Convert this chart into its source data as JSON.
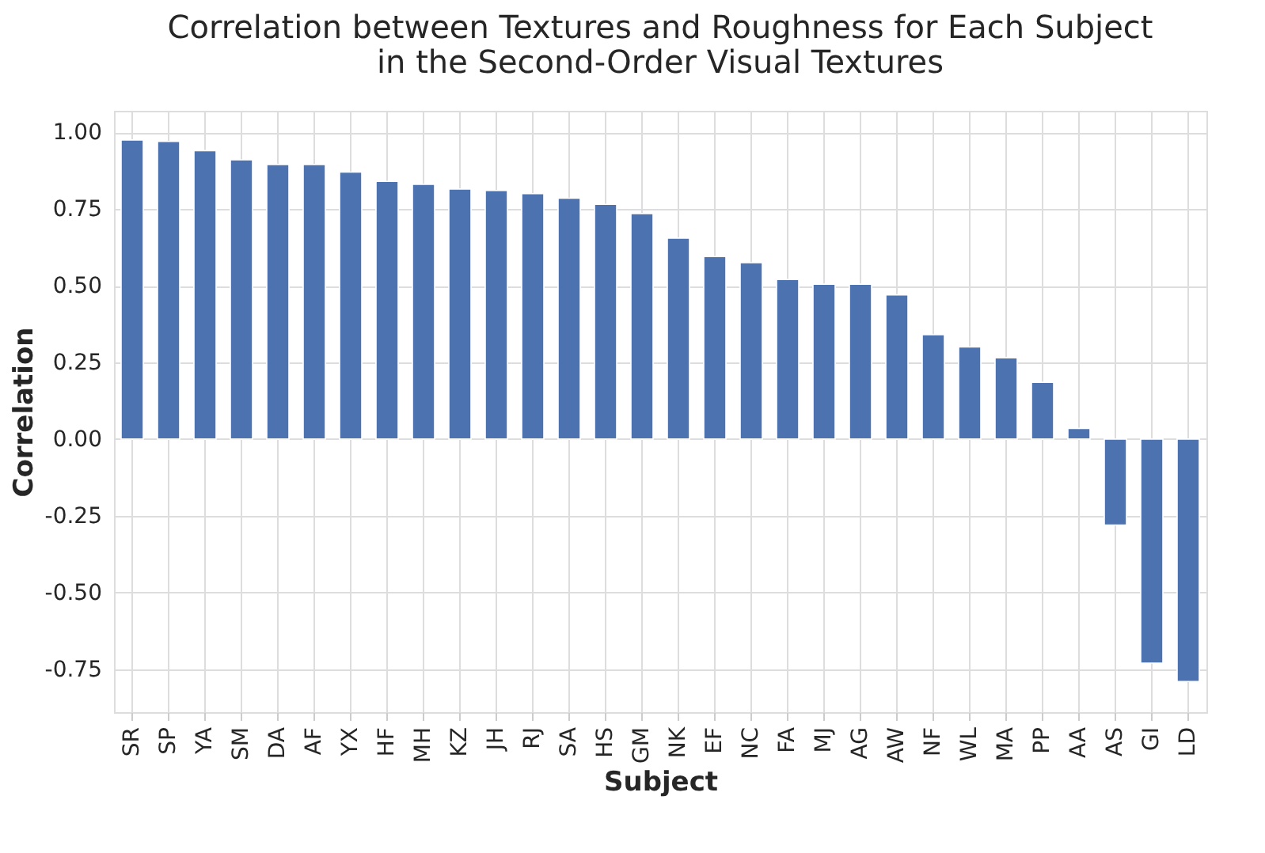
{
  "chart_data": {
    "type": "bar",
    "title": [
      "Correlation between Textures and Roughness for Each Subject",
      "in the Second-Order Visual Textures"
    ],
    "xlabel": "Subject",
    "ylabel": "Correlation",
    "categories": [
      "SR",
      "SP",
      "YA",
      "SM",
      "DA",
      "AF",
      "YX",
      "HF",
      "MH",
      "KZ",
      "JH",
      "RJ",
      "SA",
      "HS",
      "GM",
      "NK",
      "EF",
      "NC",
      "FA",
      "MJ",
      "AG",
      "AW",
      "NF",
      "WL",
      "MA",
      "PP",
      "AA",
      "AS",
      "GI",
      "LD"
    ],
    "values": [
      0.975,
      0.97,
      0.94,
      0.91,
      0.895,
      0.895,
      0.87,
      0.84,
      0.83,
      0.815,
      0.81,
      0.8,
      0.785,
      0.765,
      0.735,
      0.655,
      0.595,
      0.575,
      0.52,
      0.505,
      0.505,
      0.47,
      0.34,
      0.3,
      0.265,
      0.185,
      0.035,
      -0.28,
      -0.73,
      -0.79
    ],
    "color": "#4c72b0",
    "ylim": [
      -0.89,
      1.07
    ],
    "yticks": [
      {
        "value": -0.75,
        "label": "-0.75"
      },
      {
        "value": -0.5,
        "label": "-0.50"
      },
      {
        "value": -0.25,
        "label": "-0.25"
      },
      {
        "value": 0,
        "label": "0.00"
      },
      {
        "value": 0.25,
        "label": "0.25"
      },
      {
        "value": 0.5,
        "label": "0.50"
      },
      {
        "value": 0.75,
        "label": "0.75"
      },
      {
        "value": 1,
        "label": "1.00"
      }
    ],
    "grid": true
  }
}
